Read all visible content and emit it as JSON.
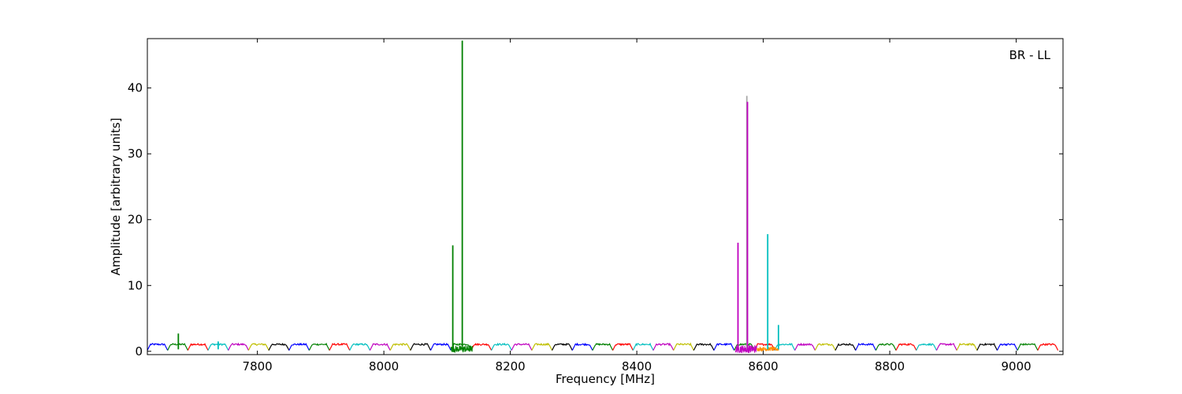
{
  "chart_data": {
    "type": "line",
    "title": "",
    "annotation": "BR - LL",
    "xlabel": "Frequency [MHz]",
    "ylabel": "Amplitude [arbitrary units]",
    "xlim": [
      7626,
      9074
    ],
    "ylim": [
      -0.5,
      47.5
    ],
    "xticks": [
      7800,
      8000,
      8200,
      8400,
      8600,
      8800,
      9000
    ],
    "yticks": [
      0,
      10,
      20,
      30,
      40
    ],
    "grid": false,
    "legend": "none",
    "channel": {
      "width_mhz": 32,
      "start_mhz": 7626,
      "count": 45,
      "baseline_level": 1.05,
      "edge_dip_level": 0.15
    },
    "color_cycle": [
      "#0000ff",
      "#008000",
      "#ff0000",
      "#00bfbf",
      "#bf00bf",
      "#bfbf00",
      "#000000"
    ],
    "spikes": [
      {
        "x": 7675,
        "y": 2.7,
        "color": "#008000"
      },
      {
        "x": 7738,
        "y": 1.5,
        "color": "#00bfbf"
      },
      {
        "x": 8109,
        "y": 16.1,
        "color": "#008000"
      },
      {
        "x": 8124,
        "y": 47.2,
        "color": "#008000"
      },
      {
        "x": 8560,
        "y": 16.5,
        "color": "#bf00bf"
      },
      {
        "x": 8574,
        "y": 38.8,
        "color": "#aaaaaa"
      },
      {
        "x": 8575,
        "y": 37.9,
        "color": "#bf00bf"
      },
      {
        "x": 8607,
        "y": 17.8,
        "color": "#00bfbf"
      },
      {
        "x": 8624,
        "y": 4.0,
        "color": "#00bfbf"
      }
    ],
    "noisy_regions": [
      {
        "x0": 8106,
        "x1": 8140,
        "color": "#008000",
        "amplitude": 0.5
      },
      {
        "x0": 8556,
        "x1": 8590,
        "color": "#bf00bf",
        "amplitude": 0.6
      },
      {
        "x0": 8590,
        "x1": 8625,
        "color": "#ff8c00",
        "amplitude": 0.3
      }
    ]
  }
}
